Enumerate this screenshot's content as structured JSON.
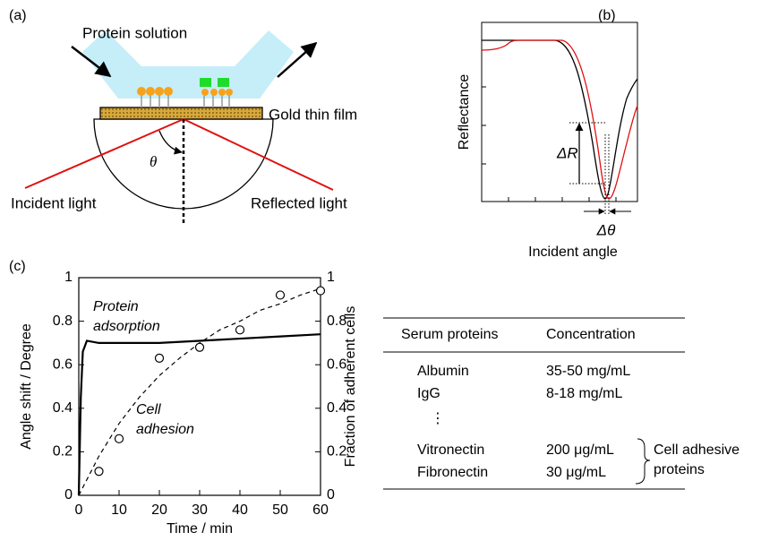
{
  "panel_a": {
    "label": "(a)",
    "protein_solution": "Protein solution",
    "gold_film": "Gold thin film",
    "incident_light": "Incident light",
    "reflected_light": "Reflected light",
    "theta": "θ"
  },
  "panel_b": {
    "label": "(b)",
    "ylabel": "Reflectance",
    "xlabel": "Incident angle",
    "delta_r": "ΔR",
    "delta_theta": "Δθ"
  },
  "chart_data": {
    "type": "line",
    "label": "(c)",
    "xlabel": "Time / min",
    "ylabel": "Angle shift / Degree",
    "y2label": "Fraction of adherent cells",
    "xlim": [
      0,
      60
    ],
    "ylim": [
      0,
      1
    ],
    "y2lim": [
      0,
      1
    ],
    "xticks": [
      0,
      10,
      20,
      30,
      40,
      50,
      60
    ],
    "yticks": [
      0,
      0.2,
      0.4,
      0.6,
      0.8,
      1
    ],
    "y2ticks": [
      0,
      0.2,
      0.4,
      0.6,
      0.8,
      1
    ],
    "annotations": [
      {
        "lines": [
          "Protein",
          "adsorption"
        ]
      },
      {
        "lines": [
          "Cell",
          "adhesion"
        ]
      }
    ],
    "series": [
      {
        "type": "line",
        "color": "#000000",
        "dash": false,
        "x": [
          0,
          0.5,
          1,
          2,
          5,
          10,
          20,
          30,
          40,
          50,
          60
        ],
        "values": [
          0,
          0.45,
          0.66,
          0.71,
          0.7,
          0.7,
          0.7,
          0.71,
          0.72,
          0.73,
          0.74
        ]
      },
      {
        "type": "line",
        "color": "#000000",
        "dash": true,
        "axis": "y2",
        "x": [
          0,
          5,
          10,
          15,
          20,
          25,
          30,
          35,
          40,
          45,
          50,
          55,
          60
        ],
        "values": [
          0,
          0.18,
          0.33,
          0.45,
          0.55,
          0.63,
          0.7,
          0.76,
          0.8,
          0.85,
          0.88,
          0.92,
          0.95
        ]
      },
      {
        "type": "scatter",
        "color": "#000000",
        "axis": "y2",
        "x": [
          5,
          10,
          20,
          30,
          40,
          50,
          60
        ],
        "values": [
          0.11,
          0.26,
          0.63,
          0.68,
          0.76,
          0.92,
          0.94
        ]
      }
    ]
  },
  "table": {
    "header": [
      "Serum proteins",
      "Concentration"
    ],
    "rows": [
      [
        "Albumin",
        "35-50 mg/mL"
      ],
      [
        "IgG",
        "8-18 mg/mL"
      ]
    ],
    "ellipsis": "⋮",
    "adhesive_rows": [
      [
        "Vitronectin",
        "200 μg/mL"
      ],
      [
        "Fibronectin",
        "30 μg/mL"
      ]
    ],
    "bracket_note": [
      "Cell adhesive",
      "proteins"
    ]
  }
}
